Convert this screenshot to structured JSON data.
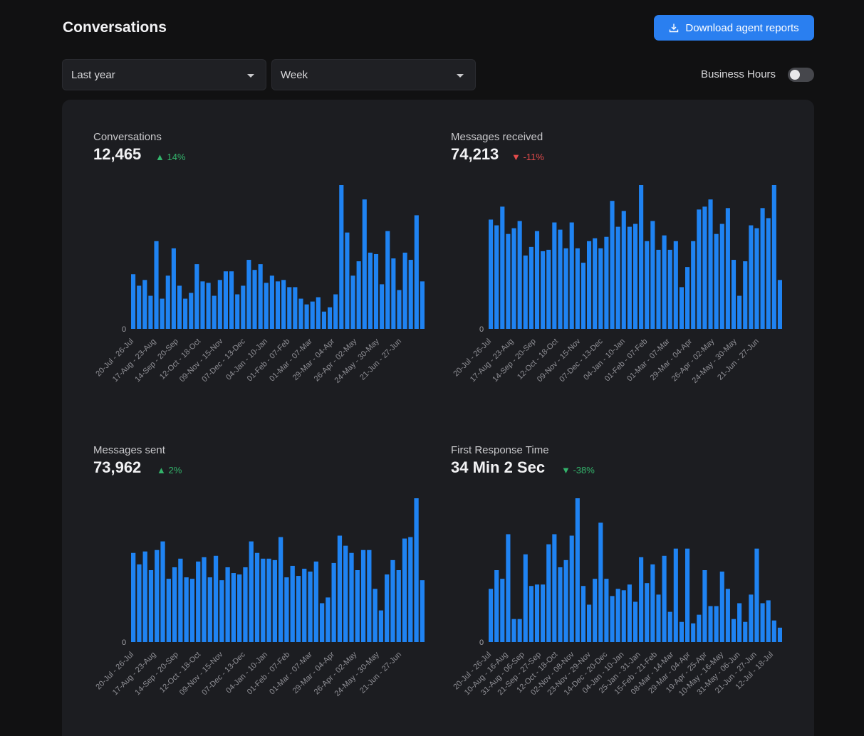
{
  "page": {
    "title": "Conversations"
  },
  "toolbar": {
    "download_label": "Download agent reports"
  },
  "filters": {
    "range": "Last year",
    "grouping": "Week",
    "business_hours_label": "Business Hours",
    "business_hours_on": false
  },
  "colors": {
    "bar": "#1f83f2",
    "accent": "#2a7ff0",
    "up": "#33b36b",
    "down": "#e24b4b"
  },
  "metrics": [
    {
      "label": "Conversations",
      "value": "12,465",
      "delta": "▲ 14%",
      "trend": "up"
    },
    {
      "label": "Messages received",
      "value": "74,213",
      "delta": "▼ -11%",
      "trend": "down"
    },
    {
      "label": "Messages sent",
      "value": "73,962",
      "delta": "▲ 2%",
      "trend": "up"
    },
    {
      "label": "First Response Time",
      "value": "34 Min 2 Sec",
      "delta": "▼ -38%",
      "trend": "up"
    }
  ],
  "chart_data": [
    {
      "type": "bar",
      "title": "Conversations",
      "y_tick": "0",
      "ylim": [
        0,
        100
      ],
      "x_ticks": [
        "20-Jul - 26-Jul",
        "17-Aug - 23-Aug",
        "14-Sep - 20-Sep",
        "12-Oct - 18-Oct",
        "09-Nov - 15-Nov",
        "07-Dec - 13-Dec",
        "04-Jan - 10-Jan",
        "01-Feb - 07-Feb",
        "01-Mar - 07-Mar",
        "29-Mar - 04-Apr",
        "26-Apr - 02-May",
        "24-May - 30-May",
        "21-Jun - 27-Jun"
      ],
      "values": [
        38,
        30,
        34,
        23,
        61,
        21,
        37,
        56,
        30,
        21,
        25,
        45,
        33,
        32,
        23,
        34,
        40,
        40,
        24,
        30,
        48,
        41,
        45,
        32,
        37,
        33,
        34,
        29,
        29,
        21,
        17,
        19,
        22,
        12,
        15,
        24,
        100,
        67,
        37,
        47,
        90,
        53,
        52,
        31,
        68,
        49,
        27,
        53,
        48,
        79,
        33
      ]
    },
    {
      "type": "bar",
      "title": "Messages received",
      "y_tick": "0",
      "ylim": [
        0,
        100
      ],
      "x_ticks": [
        "20-Jul - 26-Jul",
        "17-Aug - 23-Aug",
        "14-Sep - 20-Sep",
        "12-Oct - 18-Oct",
        "09-Nov - 15-Nov",
        "07-Dec - 13-Dec",
        "04-Jan - 10-Jan",
        "01-Feb - 07-Feb",
        "01-Mar - 07-Mar",
        "29-Mar - 04-Apr",
        "26-Apr - 02-May",
        "24-May - 30-May",
        "21-Jun - 27-Jun"
      ],
      "values": [
        76,
        72,
        85,
        66,
        70,
        75,
        51,
        57,
        68,
        54,
        55,
        74,
        69,
        56,
        74,
        56,
        46,
        61,
        63,
        56,
        64,
        89,
        71,
        82,
        71,
        73,
        100,
        61,
        75,
        55,
        65,
        55,
        61,
        29,
        43,
        61,
        83,
        85,
        90,
        66,
        73,
        84,
        48,
        23,
        47,
        72,
        70,
        84,
        77,
        100,
        34
      ]
    },
    {
      "type": "bar",
      "title": "Messages sent",
      "y_tick": "0",
      "ylim": [
        0,
        100
      ],
      "x_ticks": [
        "20-Jul - 26-Jul",
        "17-Aug - 23-Aug",
        "14-Sep - 20-Sep",
        "12-Oct - 18-Oct",
        "09-Nov - 15-Nov",
        "07-Dec - 13-Dec",
        "04-Jan - 10-Jan",
        "01-Feb - 07-Feb",
        "01-Mar - 07-Mar",
        "29-Mar - 04-Apr",
        "26-Apr - 02-May",
        "24-May - 30-May",
        "21-Jun - 27-Jun"
      ],
      "values": [
        62,
        54,
        63,
        50,
        64,
        70,
        44,
        52,
        58,
        45,
        44,
        56,
        59,
        45,
        60,
        43,
        52,
        48,
        47,
        52,
        70,
        62,
        58,
        58,
        57,
        73,
        45,
        53,
        46,
        51,
        49,
        56,
        27,
        31,
        55,
        74,
        67,
        62,
        50,
        64,
        64,
        37,
        22,
        47,
        57,
        50,
        72,
        73,
        100,
        43
      ]
    },
    {
      "type": "bar",
      "title": "First Response Time",
      "y_tick": "0",
      "ylim": [
        0,
        100
      ],
      "x_ticks": [
        "20-Jul - 26-Jul",
        "10-Aug - 16-Aug",
        "31-Aug - 06-Sep",
        "21-Sep - 27-Sep",
        "12-Oct - 18-Oct",
        "02-Nov - 08-Nov",
        "23-Nov - 29-Nov",
        "14-Dec - 20-Dec",
        "04-Jan - 10-Jan",
        "25-Jan - 31-Jan",
        "15-Feb - 21-Feb",
        "08-Mar - 14-Mar",
        "29-Mar - 04-Apr",
        "19-Apr - 25-Apr",
        "10-May - 16-May",
        "31-May - 06-Jun",
        "21-Jun - 27-Jun",
        "12-Jul - 18-Jul"
      ],
      "values": [
        37,
        50,
        44,
        75,
        16,
        16,
        61,
        39,
        40,
        40,
        68,
        75,
        52,
        57,
        74,
        100,
        39,
        26,
        44,
        83,
        44,
        32,
        37,
        36,
        40,
        28,
        59,
        41,
        54,
        33,
        60,
        21,
        65,
        14,
        65,
        13,
        19,
        50,
        25,
        25,
        49,
        37,
        16,
        27,
        14,
        33,
        65,
        27,
        29,
        15,
        10
      ]
    }
  ]
}
